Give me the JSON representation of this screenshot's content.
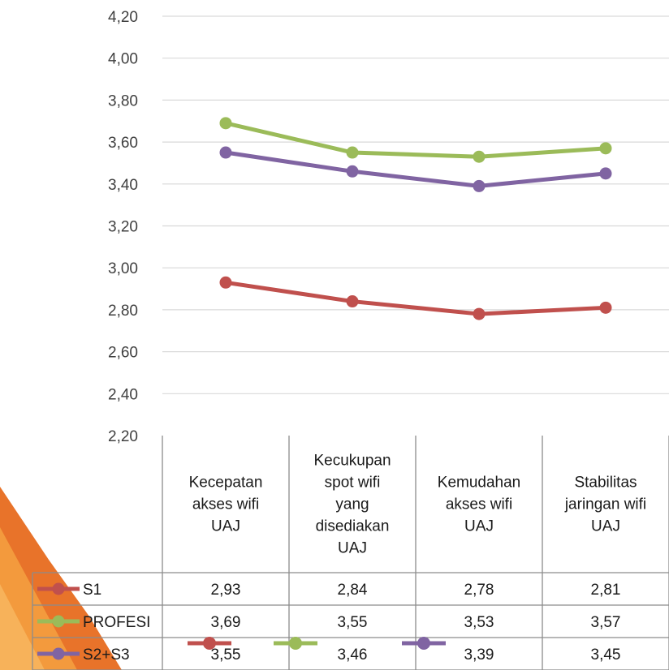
{
  "chart_data": {
    "type": "line",
    "categories": [
      [
        "Kecepatan",
        "akses wifi",
        "UAJ"
      ],
      [
        "Kecukupan",
        "spot wifi",
        "yang",
        "disediakan",
        "UAJ"
      ],
      [
        "Kemudahan",
        "akses wifi",
        "UAJ"
      ],
      [
        "Stabilitas",
        "jaringan wifi",
        "UAJ"
      ]
    ],
    "series": [
      {
        "name": "S1",
        "color": "#c0504d",
        "values": [
          2.93,
          2.84,
          2.78,
          2.81
        ],
        "labels": [
          "2,93",
          "2,84",
          "2,78",
          "2,81"
        ]
      },
      {
        "name": "PROFESI",
        "color": "#9bbb59",
        "values": [
          3.69,
          3.55,
          3.53,
          3.57
        ],
        "labels": [
          "3,69",
          "3,55",
          "3,53",
          "3,57"
        ]
      },
      {
        "name": "S2+S3",
        "color": "#8064a2",
        "values": [
          3.55,
          3.46,
          3.39,
          3.45
        ],
        "labels": [
          "3,55",
          "3,46",
          "3,39",
          "3,45"
        ]
      }
    ],
    "y_ticks": [
      "2,20",
      "2,40",
      "2,60",
      "2,80",
      "3,00",
      "3,20",
      "3,40",
      "3,60",
      "3,80",
      "4,00",
      "4,20"
    ],
    "ylim": [
      2.2,
      4.2
    ],
    "grid": true,
    "legend": "data-table"
  }
}
